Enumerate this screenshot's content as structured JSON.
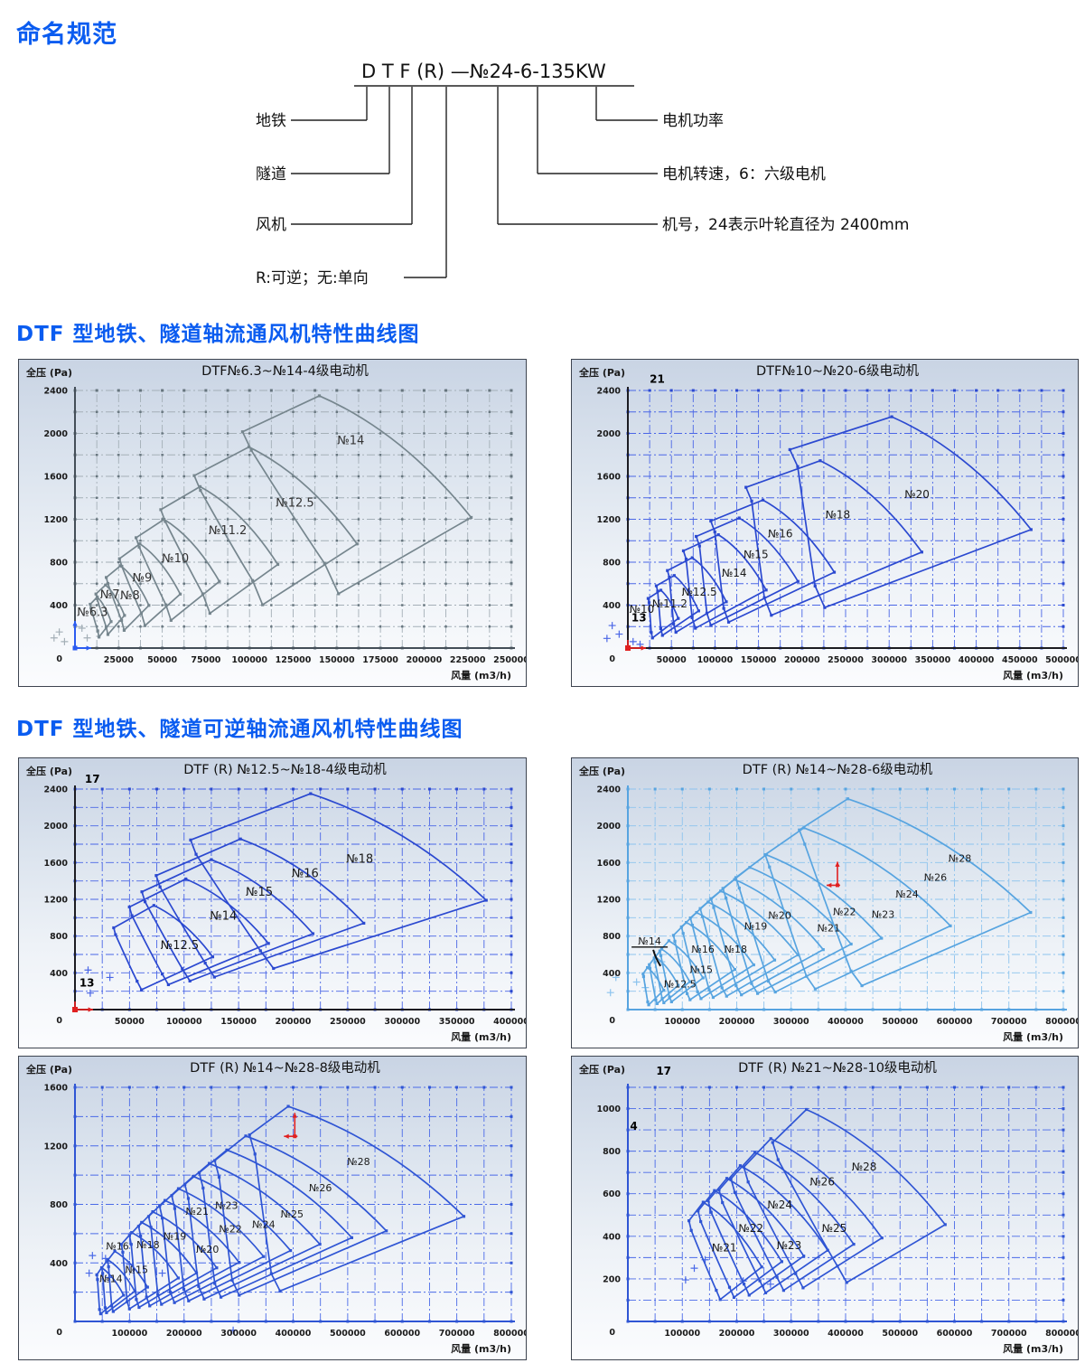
{
  "page_title": "命名规范",
  "sections": [
    {
      "title": "DTF 型地铁、隧道轴流通风机特性曲线图"
    },
    {
      "title": "DTF 型地铁、隧道可逆轴流通风机特性曲线图"
    }
  ],
  "naming": {
    "heading": "命名规范",
    "model_text": "D T F (R) —№24-6-135KW",
    "rows": [
      {
        "label": "地铁",
        "side": "left",
        "meaning": "D"
      },
      {
        "label": "隧道",
        "side": "left",
        "meaning": "T"
      },
      {
        "label": "风机",
        "side": "left",
        "meaning": "F"
      },
      {
        "label": "R:可逆；无:单向",
        "side": "left",
        "meaning": "(R)"
      },
      {
        "label": "电机功率",
        "side": "right",
        "meaning": "135KW"
      },
      {
        "label": "电机转速，6：六级电机",
        "side": "right",
        "meaning": "6"
      },
      {
        "label": "机号，24表示叶轮直径为 2400mm",
        "side": "right",
        "meaning": "№24"
      }
    ]
  },
  "chart_data": [
    {
      "type": "envelope-region",
      "title": "DTF№6.3~№14-4级电动机",
      "xlabel": "风量 (m3/h)",
      "ylabel": "全压 (Pa)",
      "xlim": [
        0,
        250000
      ],
      "ylim": [
        0,
        2400
      ],
      "x_minor": 12500,
      "x_label_step": 25000,
      "y_minor": 200,
      "y_label_step": 400,
      "y_label_max": 2400,
      "grid": "dash-dot",
      "label_fs": 13,
      "colors": {
        "line": "#76868e",
        "grid": "#a4afb7",
        "axis": "#444e58",
        "dot": "#66757e",
        "label": "#333333"
      },
      "ref_size": 14,
      "ref_envelope": {
        "L": [
          96000,
          2015
        ],
        "P": [
          140000,
          2350
        ],
        "R": [
          227000,
          1217
        ],
        "T": [
          151000,
          506
        ],
        "T2": [
          143000,
          789
        ],
        "L2": [
          101000,
          1843
        ]
      },
      "sizes": [
        {
          "no": "6.3",
          "s": 6.3,
          "lx": 10000,
          "ly": 300
        },
        {
          "no": "7",
          "s": 7,
          "lx": 20000,
          "ly": 465
        },
        {
          "no": "8",
          "s": 8,
          "lx": 31500,
          "ly": 455
        },
        {
          "no": "9",
          "s": 9,
          "lx": 38500,
          "ly": 620
        },
        {
          "no": "10",
          "s": 10,
          "lx": 57500,
          "ly": 800
        },
        {
          "no": "11.2",
          "s": 11.2,
          "lx": 87500,
          "ly": 1060
        },
        {
          "no": "12.5",
          "s": 12.5,
          "lx": 126000,
          "ly": 1320
        },
        {
          "no": "14",
          "s": 14,
          "lx": 158000,
          "ly": 1900
        }
      ],
      "annotations": [],
      "markers": [
        {
          "type": "blue-origin"
        }
      ],
      "stray": [
        [
          -9000,
          150
        ],
        [
          -6000,
          60
        ],
        [
          -12000,
          95
        ],
        [
          4000,
          185
        ],
        [
          7000,
          95
        ]
      ]
    },
    {
      "type": "envelope-region",
      "title": "DTF№10~№20-6级电动机",
      "xlabel": "风量 (m3/h)",
      "ylabel": "全压 (Pa)",
      "xlim": [
        0,
        500000
      ],
      "ylim": [
        0,
        2400
      ],
      "x_minor": 25000,
      "x_label_step": 50000,
      "y_minor": 200,
      "y_label_step": 400,
      "y_label_max": 2400,
      "grid": "dash-dot",
      "label_fs": 12,
      "colors": {
        "line": "#2b49d0",
        "grid": "#4a66e6",
        "axis": "#1c1c22",
        "dot": "#2b49d0",
        "label": "#1a1a1a"
      },
      "ref_size": 20,
      "ref_envelope": {
        "L": [
          186000,
          1849
        ],
        "P": [
          303000,
          2155
        ],
        "R": [
          463000,
          1104
        ],
        "T": [
          226000,
          377
        ],
        "T2": [
          215000,
          578
        ],
        "L2": [
          195000,
          1691
        ]
      },
      "sizes": [
        {
          "no": "10",
          "s": 10,
          "lx": 16000,
          "ly": 330
        },
        {
          "no": "11.2",
          "s": 11.2,
          "lx": 48000,
          "ly": 380
        },
        {
          "no": "12.5",
          "s": 12.5,
          "lx": 82000,
          "ly": 490
        },
        {
          "no": "14",
          "s": 14,
          "lx": 122000,
          "ly": 665
        },
        {
          "no": "15",
          "s": 15,
          "lx": 147000,
          "ly": 840
        },
        {
          "no": "16",
          "s": 16,
          "lx": 175000,
          "ly": 1030
        },
        {
          "no": "18",
          "s": 18,
          "lx": 241000,
          "ly": 1210
        },
        {
          "no": "20",
          "s": 20,
          "lx": 332000,
          "ly": 1400
        }
      ],
      "annotations": [
        {
          "text": "21",
          "x": 25000,
          "y": 2470
        },
        {
          "text": "13",
          "x": 4000,
          "y": 250
        }
      ],
      "markers": [
        {
          "type": "red-origin"
        }
      ],
      "stray": [
        [
          -18000,
          210
        ],
        [
          -10000,
          130
        ],
        [
          -24000,
          90
        ],
        [
          6000,
          60
        ],
        [
          14000,
          35
        ]
      ]
    },
    {
      "type": "envelope-region",
      "title": "DTF (R) №12.5~№18-4级电动机",
      "xlabel": "风量 (m3/h)",
      "ylabel": "全压 (Pa)",
      "xlim": [
        0,
        400000
      ],
      "ylim": [
        0,
        2400
      ],
      "x_minor": 25000,
      "x_label_step": 50000,
      "y_minor": 200,
      "y_label_step": 400,
      "y_label_max": 2400,
      "grid": "dash-dot",
      "label_fs": 13,
      "colors": {
        "line": "#2b49d0",
        "grid": "#4a66e6",
        "axis": "#1c1c22",
        "dot": "#2b49d0",
        "label": "#1a1a1a"
      },
      "ref_size": 18,
      "ref_envelope": {
        "L": [
          106000,
          1846
        ],
        "P": [
          216000,
          2350
        ],
        "R": [
          377000,
          1190
        ],
        "T": [
          182000,
          448
        ],
        "T2": [
          170000,
          640
        ],
        "L2": [
          111000,
          1690
        ]
      },
      "sizes": [
        {
          "no": "12.5",
          "s": 12.5,
          "lx": 96000,
          "ly": 660
        },
        {
          "no": "14",
          "s": 14,
          "lx": 136000,
          "ly": 980
        },
        {
          "no": "15",
          "s": 15,
          "lx": 169000,
          "ly": 1240
        },
        {
          "no": "16",
          "s": 16,
          "lx": 211000,
          "ly": 1440
        },
        {
          "no": "18",
          "s": 18,
          "lx": 261000,
          "ly": 1600
        }
      ],
      "annotations": [
        {
          "text": "17",
          "x": 9000,
          "y": 2470
        },
        {
          "text": "13",
          "x": 4000,
          "y": 250
        }
      ],
      "markers": [
        {
          "type": "red-origin"
        }
      ],
      "stray": [
        [
          12000,
          430
        ],
        [
          32000,
          350
        ],
        [
          14000,
          180
        ]
      ]
    },
    {
      "type": "envelope-region",
      "title": "DTF (R) №14~№28-6级电动机",
      "xlabel": "风量 (m3/h)",
      "ylabel": "全压 (Pa)",
      "xlim": [
        0,
        800000
      ],
      "ylim": [
        0,
        2400
      ],
      "x_minor": 50000,
      "x_label_step": 100000,
      "y_minor": 200,
      "y_label_step": 400,
      "y_label_max": 2400,
      "grid": "dash-dot",
      "label_fs": 11,
      "colors": {
        "line": "#57a4e0",
        "grid": "#8cc3ee",
        "axis": "#57a4e0",
        "dot": "#57a4e0",
        "label": "#1a1a1a"
      },
      "ref_size": 28,
      "ref_envelope": {
        "L": [
          315000,
          1955
        ],
        "P": [
          404000,
          2294
        ],
        "R": [
          740000,
          1057
        ],
        "T": [
          430000,
          260
        ],
        "T2": [
          410000,
          420
        ],
        "L2": [
          325000,
          1800
        ]
      },
      "sizes": [
        {
          "no": "12.5",
          "s": 12.5,
          "lx": 96000,
          "ly": 240
        },
        {
          "no": "14",
          "s": 14,
          "lx": 40000,
          "ly": 710,
          "u": 1
        },
        {
          "no": "15",
          "s": 15,
          "lx": 135000,
          "ly": 400
        },
        {
          "no": "16",
          "s": 16,
          "lx": 138000,
          "ly": 620
        },
        {
          "no": "18",
          "s": 18,
          "lx": 198000,
          "ly": 620
        },
        {
          "no": "19",
          "s": 19,
          "lx": 235000,
          "ly": 870
        },
        {
          "no": "20",
          "s": 20,
          "lx": 279000,
          "ly": 990
        },
        {
          "no": "21",
          "s": 21,
          "lx": 369000,
          "ly": 850
        },
        {
          "no": "22",
          "s": 22,
          "lx": 398000,
          "ly": 1030
        },
        {
          "no": "23",
          "s": 23,
          "lx": 469000,
          "ly": 1000
        },
        {
          "no": "24",
          "s": 24,
          "lx": 513000,
          "ly": 1220
        },
        {
          "no": "26",
          "s": 26,
          "lx": 565000,
          "ly": 1400
        },
        {
          "no": "28",
          "s": 28,
          "lx": 610000,
          "ly": 1610
        }
      ],
      "annotations": [],
      "markers": [
        {
          "type": "red-cross",
          "x": 385000,
          "y": 1353
        }
      ],
      "stray": [
        [
          -22000,
          350
        ],
        [
          16000,
          300
        ],
        [
          32000,
          240
        ],
        [
          -32000,
          185
        ],
        [
          62000,
          520
        ]
      ]
    },
    {
      "type": "envelope-region",
      "title": "DTF (R) №14~№28-8级电动机",
      "xlabel": "风量 (m3/h)",
      "ylabel": "全压 (Pa)",
      "xlim": [
        0,
        800000
      ],
      "ylim": [
        0,
        1600
      ],
      "x_minor": 50000,
      "x_label_step": 100000,
      "y_minor": 200,
      "y_label_step": 400,
      "y_label_max": 1600,
      "grid": "dash-dot",
      "label_fs": 11,
      "colors": {
        "line": "#2f55d4",
        "grid": "#4a6ae8",
        "axis": "#2f55d4",
        "dot": "#2f55d4",
        "label": "#1a1a1a"
      },
      "ref_size": 28,
      "ref_envelope": {
        "L": [
          320000,
          1275
        ],
        "P": [
          391000,
          1470
        ],
        "R": [
          713000,
          718
        ],
        "T": [
          376000,
          208
        ],
        "T2": [
          360000,
          326
        ],
        "L2": [
          330000,
          1144
        ]
      },
      "sizes": [
        {
          "no": "14",
          "s": 14,
          "lx": 66000,
          "ly": 270
        },
        {
          "no": "15",
          "s": 15,
          "lx": 113000,
          "ly": 330
        },
        {
          "no": "16",
          "s": 16,
          "lx": 78000,
          "ly": 490
        },
        {
          "no": "18",
          "s": 18,
          "lx": 134000,
          "ly": 500
        },
        {
          "no": "19",
          "s": 19,
          "lx": 183000,
          "ly": 560
        },
        {
          "no": "20",
          "s": 20,
          "lx": 243000,
          "ly": 470
        },
        {
          "no": "21",
          "s": 21,
          "lx": 224000,
          "ly": 730
        },
        {
          "no": "22",
          "s": 22,
          "lx": 285000,
          "ly": 610
        },
        {
          "no": "23",
          "s": 23,
          "lx": 278000,
          "ly": 770
        },
        {
          "no": "24",
          "s": 24,
          "lx": 346000,
          "ly": 640
        },
        {
          "no": "25",
          "s": 25,
          "lx": 398000,
          "ly": 710
        },
        {
          "no": "26",
          "s": 26,
          "lx": 450000,
          "ly": 890
        },
        {
          "no": "28",
          "s": 28,
          "lx": 520000,
          "ly": 1070
        }
      ],
      "annotations": [],
      "markers": [
        {
          "type": "red-cross",
          "x": 403000,
          "y": 1265
        }
      ],
      "stray": [
        [
          32000,
          450
        ],
        [
          56000,
          430
        ],
        [
          26000,
          330
        ],
        [
          62000,
          300
        ],
        [
          100000,
          390
        ],
        [
          160000,
          330
        ],
        [
          290000,
          -60
        ]
      ]
    },
    {
      "type": "envelope-region",
      "title": "DTF (R) №21~№28-10级电动机",
      "xlabel": "风量 (m3/h)",
      "ylabel": "全压 (Pa)",
      "xlim": [
        0,
        800000
      ],
      "ylim": [
        0,
        1100
      ],
      "x_minor": 50000,
      "x_label_step": 100000,
      "y_minor": 100,
      "y_label_step": 200,
      "y_label_max": 1000,
      "grid": "dash-dot",
      "label_fs": 12,
      "colors": {
        "line": "#2f55d4",
        "grid": "#4a6ae8",
        "axis": "#2f55d4",
        "dot": "#2f55d4",
        "label": "#1a1a1a"
      },
      "ref_size": 28,
      "ref_envelope": {
        "L": [
          266000,
          841
        ],
        "P": [
          328000,
          996
        ],
        "R": [
          583000,
          455
        ],
        "T": [
          402000,
          183
        ],
        "T2": [
          385000,
          260
        ],
        "L2": [
          276000,
          760
        ]
      },
      "sizes": [
        {
          "no": "21",
          "s": 21,
          "lx": 177000,
          "ly": 330
        },
        {
          "no": "22",
          "s": 22,
          "lx": 226000,
          "ly": 420
        },
        {
          "no": "23",
          "s": 23,
          "lx": 296000,
          "ly": 340
        },
        {
          "no": "24",
          "s": 24,
          "lx": 279000,
          "ly": 530
        },
        {
          "no": "25",
          "s": 25,
          "lx": 379000,
          "ly": 420
        },
        {
          "no": "26",
          "s": 26,
          "lx": 357000,
          "ly": 640
        },
        {
          "no": "28",
          "s": 28,
          "lx": 434000,
          "ly": 710
        }
      ],
      "annotations": [
        {
          "text": "17",
          "x": 52000,
          "y": 1160
        },
        {
          "text": "4",
          "x": 4000,
          "y": 900
        }
      ],
      "markers": [],
      "stray": [
        [
          122000,
          250
        ],
        [
          142000,
          290
        ],
        [
          106000,
          195
        ],
        [
          212000,
          190
        ],
        [
          262000,
          175
        ]
      ]
    }
  ]
}
